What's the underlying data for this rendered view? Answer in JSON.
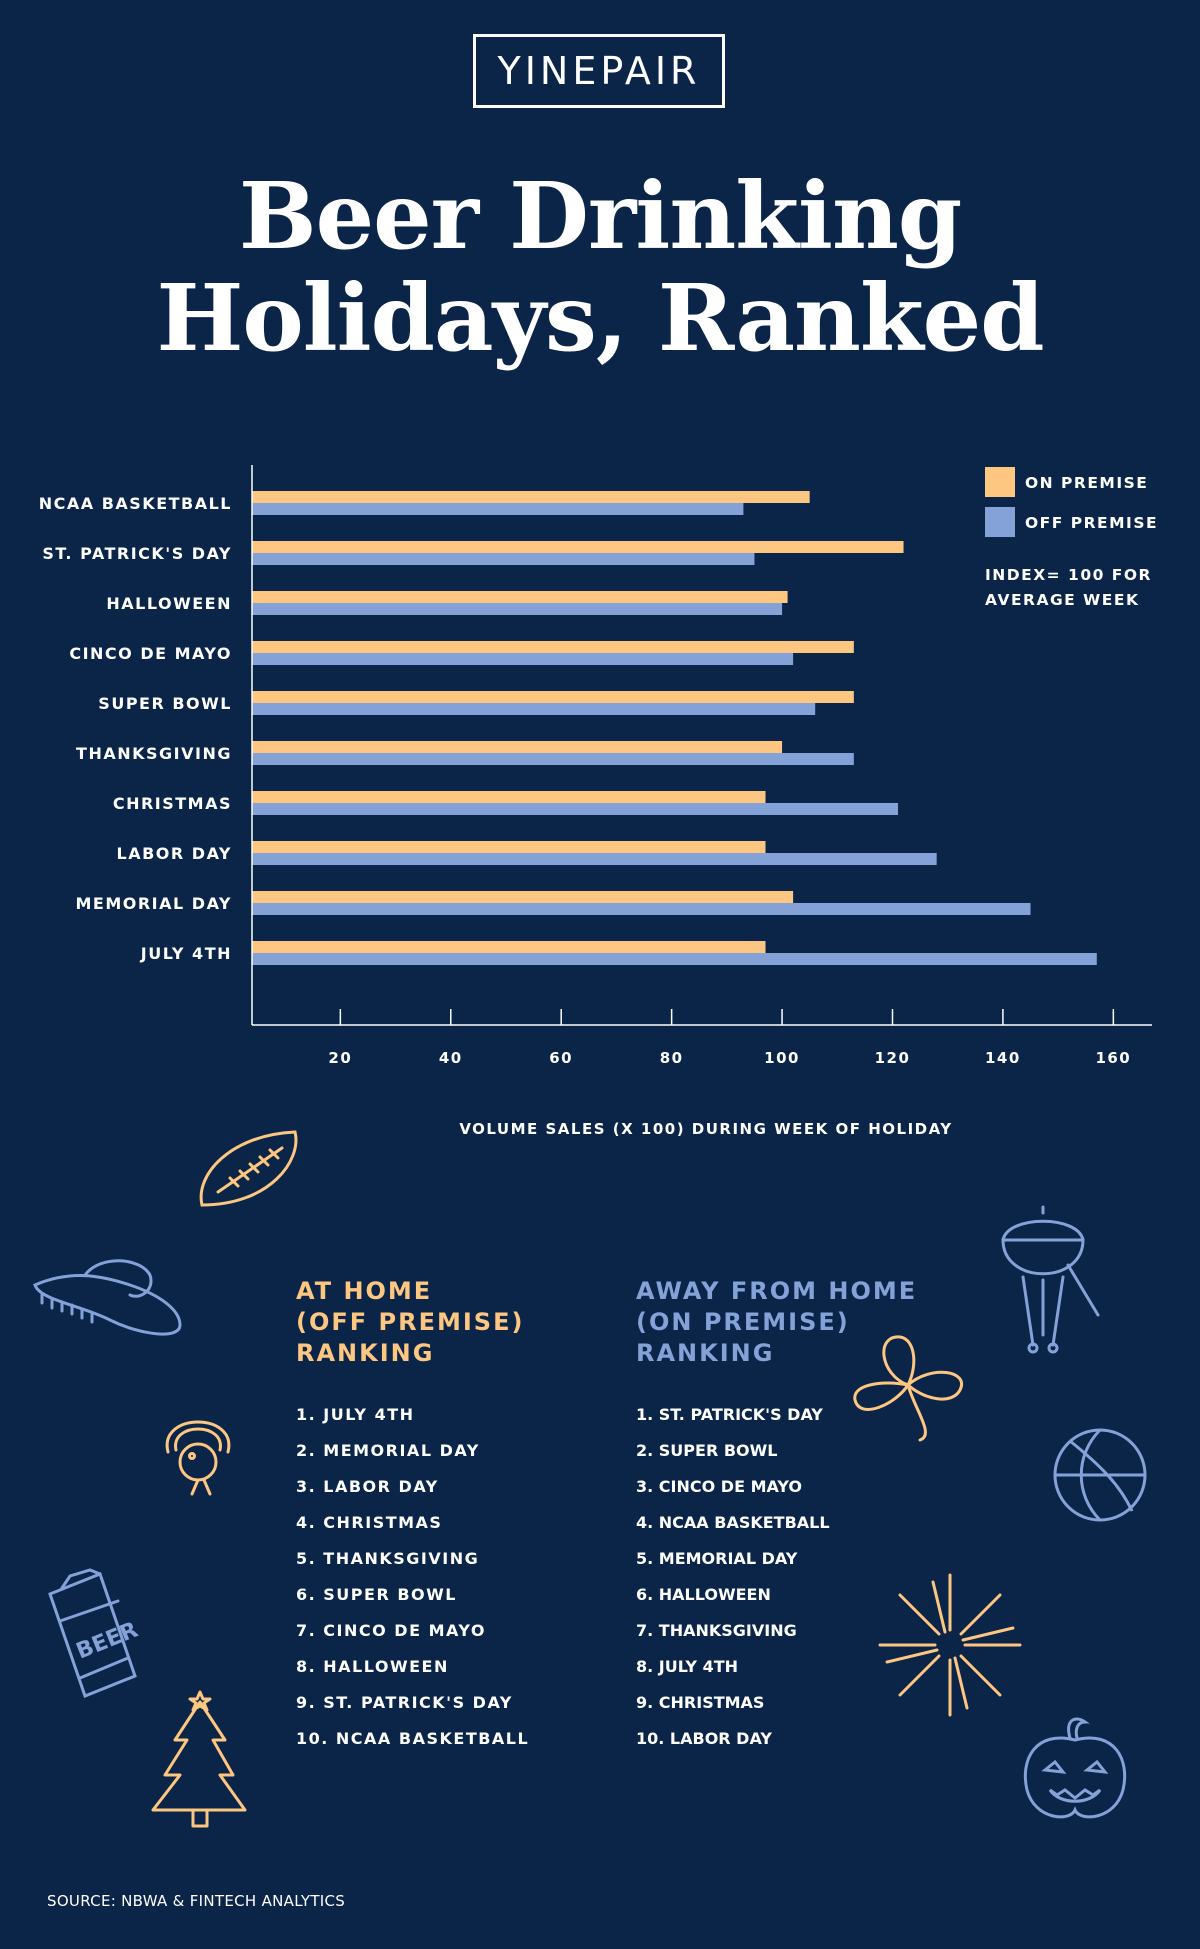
{
  "brand": {
    "logo_text": "YINEPAIR"
  },
  "title": {
    "line1": "Beer Drinking",
    "line2": "Holidays, Ranked"
  },
  "colors": {
    "background": "#0b2549",
    "on_premise": "#fdc781",
    "off_premise": "#85a2d8",
    "text": "#ffffff"
  },
  "chart_data": {
    "type": "bar",
    "orientation": "horizontal",
    "categories": [
      "NCAA BASKETBALL",
      "ST. PATRICK'S DAY",
      "HALLOWEEN",
      "CINCO DE MAYO",
      "SUPER BOWL",
      "THANKSGIVING",
      "CHRISTMAS",
      "LABOR DAY",
      "MEMORIAL DAY",
      "JULY 4TH"
    ],
    "series": [
      {
        "name": "ON PREMISE",
        "color": "#fdc781",
        "values": [
          105,
          122,
          101,
          113,
          113,
          100,
          97,
          97,
          102,
          97
        ]
      },
      {
        "name": "OFF PREMISE",
        "color": "#85a2d8",
        "values": [
          93,
          95,
          100,
          102,
          106,
          113,
          121,
          128,
          145,
          157
        ]
      }
    ],
    "xticks": [
      20,
      40,
      60,
      80,
      100,
      120,
      140,
      160
    ],
    "xlim": [
      4,
      167
    ],
    "xlabel": "VOLUME SALES (X 100) DURING WEEK OF HOLIDAY",
    "ylabel": "",
    "grid": false,
    "legend_position": "top-right",
    "note": [
      "INDEX= 100 FOR",
      "AVERAGE WEEK"
    ]
  },
  "rankings": {
    "home": {
      "heading": [
        "AT HOME",
        "(OFF PREMISE)",
        "RANKING"
      ],
      "items": [
        "1. JULY 4TH",
        "2. MEMORIAL DAY",
        "3. LABOR DAY",
        "4. CHRISTMAS",
        "5. THANKSGIVING",
        "6. SUPER BOWL",
        "7. CINCO DE MAYO",
        "8. HALLOWEEN",
        "9. ST. PATRICK'S DAY",
        "10. NCAA BASKETBALL"
      ]
    },
    "away": {
      "heading": [
        "AWAY FROM HOME",
        "(ON PREMISE)",
        "RANKING"
      ],
      "items": [
        "1. ST. PATRICK'S DAY",
        "2. SUPER BOWL",
        "3. CINCO DE MAYO",
        "4. NCAA BASKETBALL",
        "5. MEMORIAL DAY",
        "6. HALLOWEEN",
        "7. THANKSGIVING",
        "8. JULY 4TH",
        "9. CHRISTMAS",
        "10. LABOR DAY"
      ]
    }
  },
  "decorations": {
    "football": "football-icon",
    "sombrero": "sombrero-icon",
    "turkey": "turkey-icon",
    "beer_can": "beer-can-icon",
    "beer_can_text": "BEER",
    "tree": "christmas-tree-icon",
    "grill": "grill-icon",
    "clover": "shamrock-icon",
    "basketball": "basketball-icon",
    "fireworks": "fireworks-icon",
    "pumpkin": "jack-o-lantern-icon"
  },
  "source": "SOURCE: NBWA & FINTECH ANALYTICS"
}
